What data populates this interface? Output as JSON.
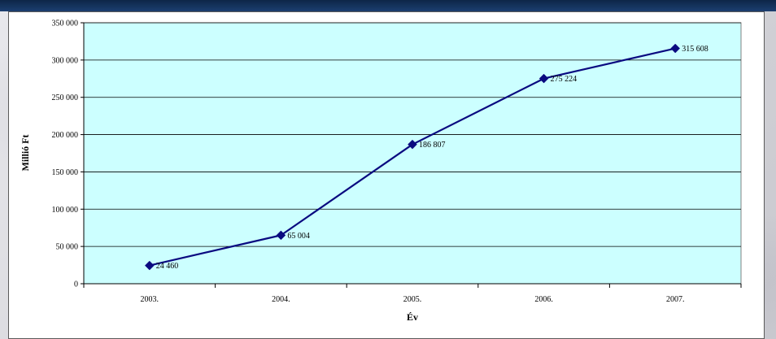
{
  "chart_data": {
    "type": "line",
    "title": "",
    "xlabel": "Év",
    "ylabel": "Millió Ft",
    "categories": [
      "2003.",
      "2004.",
      "2005.",
      "2006.",
      "2007."
    ],
    "series": [
      {
        "values": [
          24460,
          65004,
          186807,
          275224,
          315608
        ],
        "data_labels": [
          "24 460",
          "65 004",
          "186 807",
          "275 224",
          "315 608"
        ],
        "color": "#0a0a80",
        "marker": "diamond"
      }
    ],
    "ylim": [
      0,
      350000
    ],
    "yticks": [
      0,
      50000,
      100000,
      150000,
      200000,
      250000,
      300000,
      350000
    ],
    "ytick_labels": [
      "0",
      "50 000",
      "100 000",
      "150 000",
      "200 000",
      "250 000",
      "300 000",
      "350 000"
    ],
    "grid": true,
    "legend": "none",
    "plot_background": "#ccffff"
  }
}
